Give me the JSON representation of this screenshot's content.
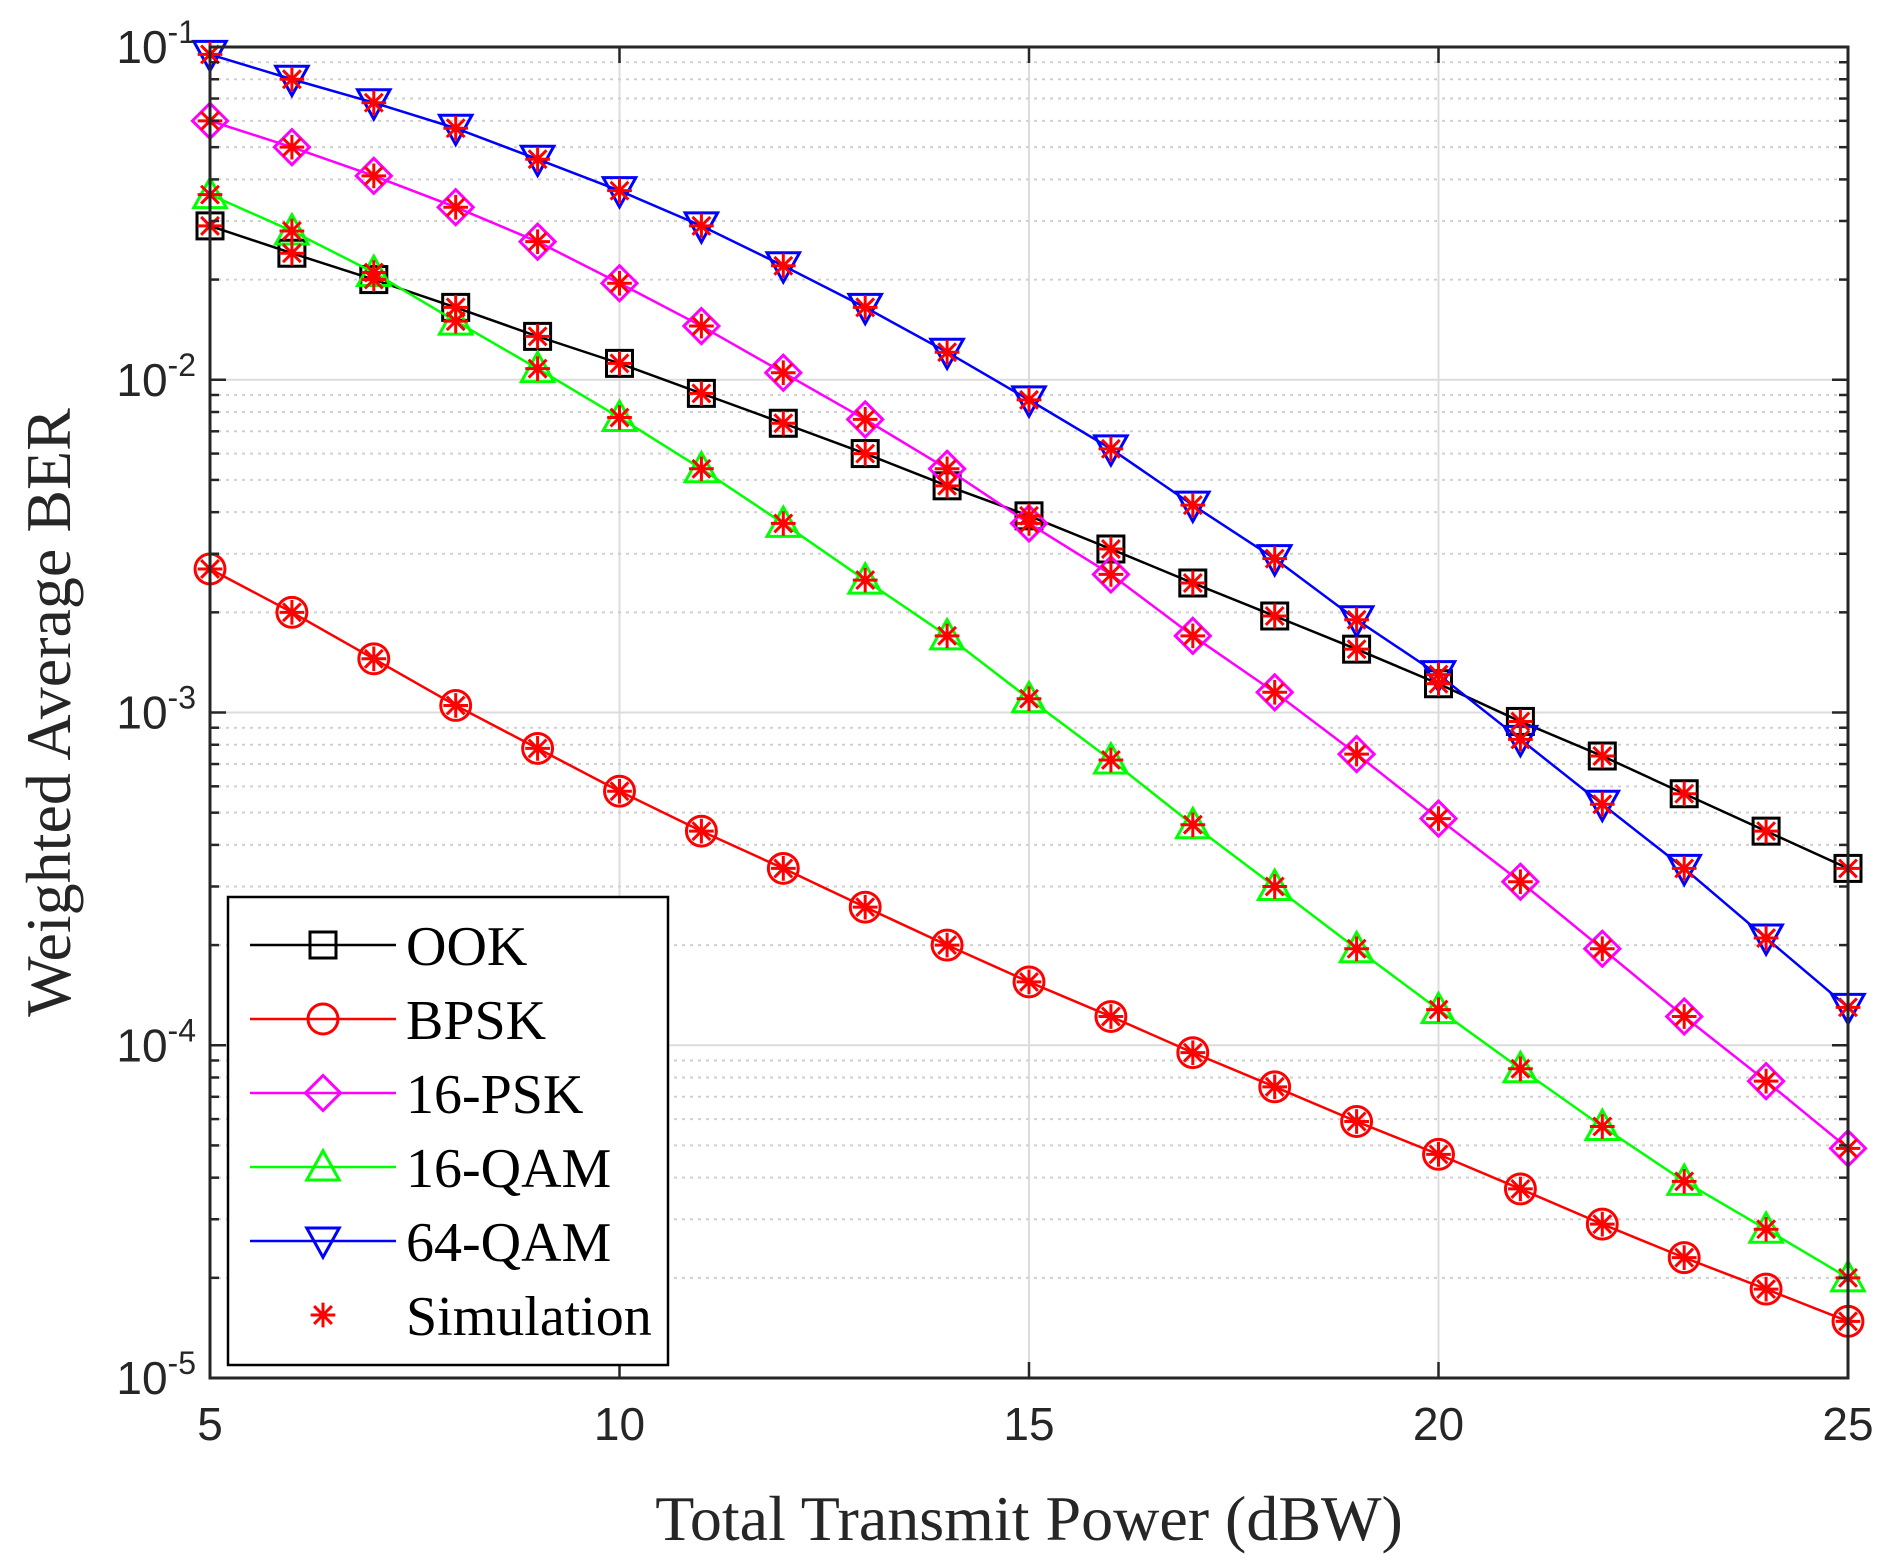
{
  "chart_data": {
    "type": "line",
    "title": "",
    "xlabel": "Total Transmit Power (dBW)",
    "ylabel": "Weighted Average BER",
    "xlim": [
      5,
      25
    ],
    "ylim": [
      1e-05,
      0.1
    ],
    "yscale": "log",
    "grid": true,
    "legend_position": "bottom-left",
    "x_ticks": [
      5,
      10,
      15,
      20,
      25
    ],
    "x_tick_labels": [
      "5",
      "10",
      "15",
      "20",
      "25"
    ],
    "y_ticks": [
      1e-05,
      0.0001,
      0.001,
      0.01,
      0.1
    ],
    "y_tick_labels": [
      {
        "base": "10",
        "exp": "-5"
      },
      {
        "base": "10",
        "exp": "-4"
      },
      {
        "base": "10",
        "exp": "-3"
      },
      {
        "base": "10",
        "exp": "-2"
      },
      {
        "base": "10",
        "exp": "-1"
      }
    ],
    "x": [
      5,
      6,
      7,
      8,
      9,
      10,
      11,
      12,
      13,
      14,
      15,
      16,
      17,
      18,
      19,
      20,
      21,
      22,
      23,
      24,
      25
    ],
    "series": [
      {
        "name": "OOK",
        "color": "#000000",
        "marker": "square",
        "values": [
          0.029,
          0.024,
          0.02,
          0.0165,
          0.0135,
          0.0112,
          0.0091,
          0.0074,
          0.006,
          0.0048,
          0.0039,
          0.0031,
          0.00245,
          0.00195,
          0.00155,
          0.00122,
          0.00094,
          0.00074,
          0.00057,
          0.00044,
          0.00034
        ]
      },
      {
        "name": "BPSK",
        "color": "#ff0000",
        "marker": "circle",
        "values": [
          0.0027,
          0.002,
          0.00145,
          0.00105,
          0.00078,
          0.00058,
          0.00044,
          0.00034,
          0.00026,
          0.0002,
          0.000155,
          0.000122,
          9.5e-05,
          7.5e-05,
          5.9e-05,
          4.7e-05,
          3.7e-05,
          2.9e-05,
          2.3e-05,
          1.85e-05,
          1.48e-05
        ]
      },
      {
        "name": "16-PSK",
        "color": "#ff00ff",
        "marker": "diamond",
        "values": [
          0.06,
          0.05,
          0.041,
          0.033,
          0.026,
          0.0195,
          0.0145,
          0.0105,
          0.0076,
          0.0054,
          0.0037,
          0.0026,
          0.0017,
          0.00115,
          0.00075,
          0.00048,
          0.00031,
          0.000195,
          0.000122,
          7.8e-05,
          4.9e-05
        ]
      },
      {
        "name": "16-QAM",
        "color": "#00ff00",
        "marker": "triangle-up",
        "values": [
          0.036,
          0.028,
          0.021,
          0.015,
          0.0108,
          0.0077,
          0.0054,
          0.0037,
          0.0025,
          0.0017,
          0.0011,
          0.00072,
          0.00046,
          0.0003,
          0.000195,
          0.000128,
          8.5e-05,
          5.7e-05,
          3.9e-05,
          2.8e-05,
          2e-05
        ]
      },
      {
        "name": "64-QAM",
        "color": "#0000ff",
        "marker": "triangle-down",
        "values": [
          0.095,
          0.08,
          0.068,
          0.057,
          0.046,
          0.037,
          0.029,
          0.022,
          0.0165,
          0.0121,
          0.0087,
          0.0062,
          0.0042,
          0.0029,
          0.0019,
          0.0013,
          0.00083,
          0.00053,
          0.00034,
          0.00021,
          0.00013
        ]
      }
    ],
    "simulation": {
      "name": "Simulation",
      "color": "#ff0000",
      "marker": "asterisk"
    }
  }
}
